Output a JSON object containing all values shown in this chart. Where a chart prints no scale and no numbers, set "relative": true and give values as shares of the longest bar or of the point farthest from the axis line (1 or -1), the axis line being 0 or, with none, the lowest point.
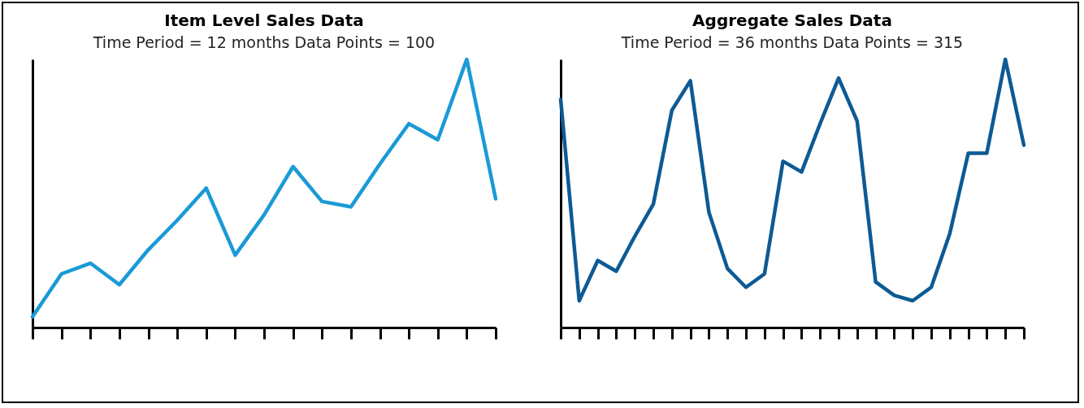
{
  "chart_data": [
    {
      "type": "line",
      "title": "Item Level Sales Data",
      "subtitle": "Time Period = 12 months   Data Points = 100",
      "relative": true,
      "categories": [
        null,
        null,
        null,
        null,
        null,
        null,
        null,
        null,
        null,
        null,
        null,
        null,
        null,
        null,
        null,
        null,
        null
      ],
      "series": [
        {
          "color": "#1a9ad6",
          "values": [
            0.04,
            0.2,
            0.24,
            0.16,
            0.29,
            0.4,
            0.52,
            0.27,
            0.42,
            0.6,
            0.47,
            0.45,
            0.61,
            0.76,
            0.7,
            1,
            0.48
          ]
        }
      ]
    },
    {
      "type": "line",
      "title": "Aggregate Sales Data",
      "subtitle": "Time Period = 36 months   Data Points = 315",
      "relative": true,
      "categories": [
        null,
        null,
        null,
        null,
        null,
        null,
        null,
        null,
        null,
        null,
        null,
        null,
        null,
        null,
        null,
        null,
        null,
        null,
        null,
        null,
        null,
        null,
        null,
        null,
        null,
        null
      ],
      "series": [
        {
          "color": "#0d5a94",
          "values": [
            0.85,
            0.1,
            0.25,
            0.21,
            0.34,
            0.46,
            0.81,
            0.92,
            0.43,
            0.22,
            0.15,
            0.2,
            0.62,
            0.58,
            0.76,
            0.93,
            0.77,
            0.17,
            0.12,
            0.1,
            0.15,
            0.35,
            0.65,
            0.65,
            1,
            0.68
          ]
        }
      ]
    }
  ]
}
